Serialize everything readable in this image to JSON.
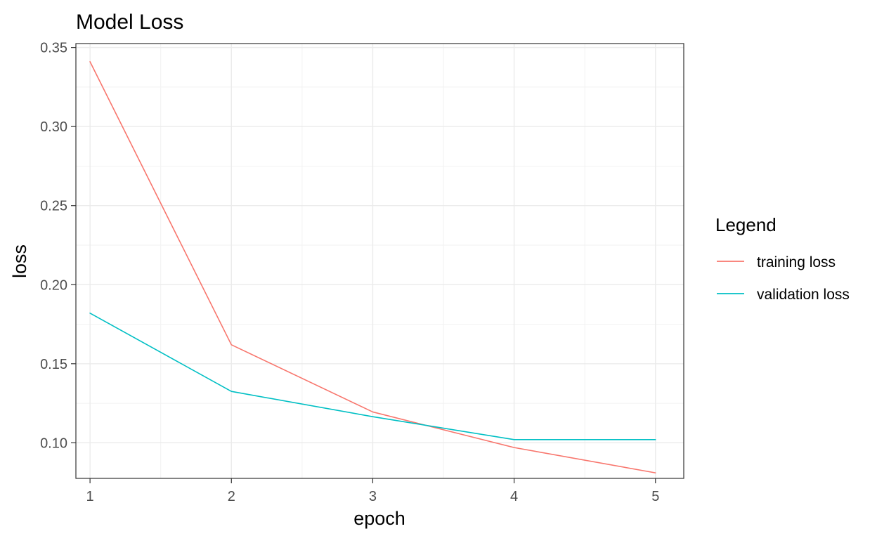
{
  "chart_data": {
    "type": "line",
    "title": "Model Loss",
    "xlabel": "epoch",
    "ylabel": "loss",
    "x": [
      1,
      2,
      3,
      4,
      5
    ],
    "xlim": [
      0.9,
      5.2
    ],
    "ylim": [
      0.0775,
      0.3525
    ],
    "x_ticks": [
      1,
      2,
      3,
      4,
      5
    ],
    "x_tick_labels": [
      "1",
      "2",
      "3",
      "4",
      "5"
    ],
    "y_ticks": [
      0.1,
      0.15,
      0.2,
      0.25,
      0.3,
      0.35
    ],
    "y_tick_labels": [
      "0.10",
      "0.15",
      "0.20",
      "0.25",
      "0.30",
      "0.35"
    ],
    "grid": true,
    "legend": {
      "title": "Legend",
      "placement": "right"
    },
    "series": [
      {
        "name": "training loss",
        "color": "#F8766D",
        "values": [
          0.341,
          0.162,
          0.1195,
          0.097,
          0.081
        ]
      },
      {
        "name": "validation loss",
        "color": "#00BFC4",
        "values": [
          0.182,
          0.1325,
          0.1165,
          0.102,
          0.102
        ]
      }
    ]
  }
}
